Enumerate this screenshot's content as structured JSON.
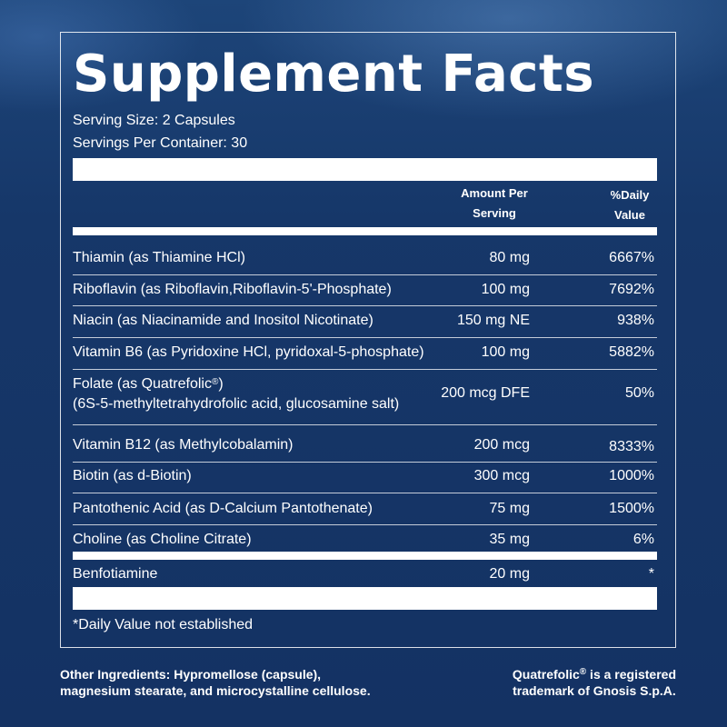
{
  "title": "Supplement Facts",
  "serving_size": "Serving Size: 2 Capsules",
  "servings_per_container": "Servings Per Container: 30",
  "columns": {
    "amount_line1": "Amount Per",
    "amount_line2": "Serving",
    "dv_line1": "%Daily",
    "dv_line2": "Value"
  },
  "rows": [
    {
      "name": "Thiamin (as Thiamine HCl)",
      "amount": "80 mg",
      "dv": "6667%"
    },
    {
      "name": "Riboflavin (as Riboflavin,Riboflavin-5'-Phosphate)",
      "amount": "100 mg",
      "dv": "7692%"
    },
    {
      "name": "Niacin (as Niacinamide and Inositol Nicotinate)",
      "amount": "150 mg NE",
      "dv": "938%"
    },
    {
      "name": "Vitamin B6 (as Pyridoxine HCl, pyridoxal-5-phosphate)",
      "amount": "100 mg",
      "dv": "5882%"
    },
    {
      "name": "Folate (as Quatrefolic",
      "name_mark": "®",
      "name_end": ")",
      "name_line2": "(6S-5-methyltetrahydrofolic acid, glucosamine salt)",
      "amount": "200 mcg DFE",
      "dv": "50%"
    },
    {
      "name": "Vitamin B12 (as Methylcobalamin)",
      "amount": "200 mcg",
      "dv": "8333%"
    },
    {
      "name": "Biotin (as d-Biotin)",
      "amount": "300 mcg",
      "dv": "1000%"
    },
    {
      "name": "Pantothenic Acid (as D-Calcium Pantothenate)",
      "amount": "75 mg",
      "dv": "1500%"
    },
    {
      "name": "Choline (as Choline Citrate)",
      "amount": "35 mg",
      "dv": "6%"
    },
    {
      "name": "Benfotiamine",
      "amount": "20 mg",
      "dv": "*"
    }
  ],
  "footnote": "*Daily Value not established",
  "other_ingredients": {
    "line1": "Other Ingredients: Hypromellose (capsule),",
    "line2": "magnesium stearate, and microcystalline cellulose."
  },
  "trademark": {
    "line1_start": "Quatrefolic",
    "line1_mark": "®",
    "line1_end": " is a registered",
    "line2": "trademark of Gnosis S.p.A."
  }
}
